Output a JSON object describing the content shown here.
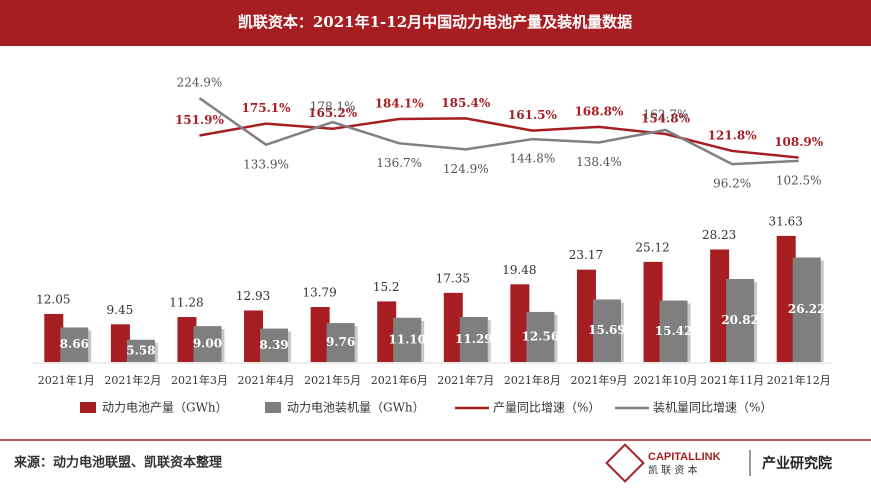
{
  "chart_data": {
    "type": "combo",
    "title": "凯联资本：2021年1-12月中国动力电池产量及装机量数据",
    "source": "来源：动力电池联盟、凯联资本整理",
    "brand": {
      "name": "CAPITALLINK",
      "cn": "凯 联 资 本",
      "dept": "产业研究院"
    },
    "categories": [
      "2021年1月",
      "2021年2月",
      "2021年3月",
      "2021年4月",
      "2021年5月",
      "2021年6月",
      "2021年7月",
      "2021年8月",
      "2021年9月",
      "2021年10月",
      "2021年11月",
      "2021年12月"
    ],
    "ylim": [
      0,
      72
    ],
    "y2lim": [
      -290,
      270
    ],
    "legend": "bottom",
    "series": [
      {
        "name": "动力电池产量（GWh）",
        "type": "bar",
        "color": "#a61e22",
        "values": [
          12.05,
          9.45,
          11.28,
          12.93,
          13.79,
          15.2,
          17.35,
          19.48,
          23.17,
          25.12,
          28.23,
          31.63
        ]
      },
      {
        "name": "动力电池装机量（GWh）",
        "type": "bar",
        "color": "#7f7f7f",
        "values": [
          8.66,
          5.58,
          9.0,
          8.39,
          9.76,
          11.1,
          11.29,
          12.56,
          15.69,
          15.42,
          20.82,
          26.22
        ],
        "value_labels": [
          "8.66",
          "5.58",
          "9.00",
          "8.39",
          "9.76",
          "11.10",
          "11.29",
          "12.56",
          "15.69",
          "15.42",
          "20.82",
          "26.22"
        ]
      },
      {
        "name": "产量同比增速（%）",
        "type": "line",
        "axis": "y2",
        "color": "#a61e22",
        "values": [
          null,
          null,
          151.9,
          175.1,
          165.2,
          184.1,
          185.4,
          161.5,
          168.8,
          154.8,
          121.8,
          108.9
        ],
        "value_labels": [
          null,
          null,
          "151.9%",
          "175.1%",
          "165.2%",
          "184.1%",
          "185.4%",
          "161.5%",
          "168.8%",
          "154.8%",
          "121.8%",
          "108.9%"
        ]
      },
      {
        "name": "装机量同比增速（%）",
        "type": "line",
        "axis": "y2",
        "color": "#808080",
        "values": [
          null,
          null,
          224.9,
          133.9,
          178.1,
          136.7,
          124.9,
          144.8,
          138.4,
          162.7,
          96.2,
          102.5
        ],
        "value_labels": [
          null,
          null,
          "224.9%",
          "133.9%",
          "178.1%",
          "136.7%",
          "124.9%",
          "144.8%",
          "138.4%",
          "162.7%",
          "96.2%",
          "102.5%"
        ]
      }
    ]
  }
}
